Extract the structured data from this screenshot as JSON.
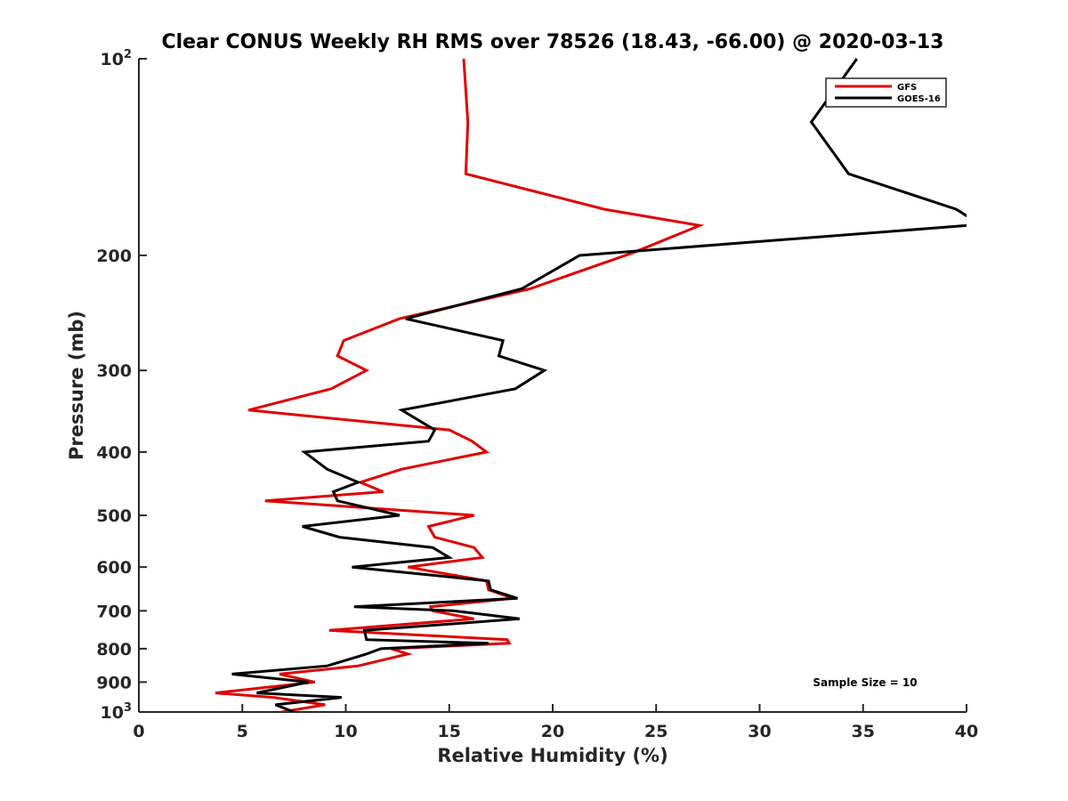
{
  "chart_data": {
    "type": "line",
    "title": "Clear CONUS Weekly RH RMS over 78526 (18.43, -66.00) @ 2020-03-13",
    "xlabel": "Relative Humidity (%)",
    "ylabel": "Pressure (mb)",
    "xlim": [
      0,
      40
    ],
    "ylim": [
      100,
      1000
    ],
    "y_scale": "log",
    "y_reversed": true,
    "grid": false,
    "legend_position": "top-right",
    "x_ticks": [
      "0",
      "5",
      "10",
      "15",
      "20",
      "25",
      "30",
      "35",
      "40"
    ],
    "y_ticks": [
      {
        "value": 100,
        "base": "10",
        "exp": "2"
      },
      {
        "value": 200,
        "label": "200"
      },
      {
        "value": 300,
        "label": "300"
      },
      {
        "value": 400,
        "label": "400"
      },
      {
        "value": 500,
        "label": "500"
      },
      {
        "value": 600,
        "label": "600"
      },
      {
        "value": 700,
        "label": "700"
      },
      {
        "value": 800,
        "label": "800"
      },
      {
        "value": 900,
        "label": "900"
      },
      {
        "value": 1000,
        "base": "10",
        "exp": "3"
      }
    ],
    "annotation": "Sample Size = 10",
    "series": [
      {
        "name": "GFS",
        "color": "#e00000",
        "points": [
          [
            15.7,
            100
          ],
          [
            15.9,
            125
          ],
          [
            15.8,
            150
          ],
          [
            22.5,
            170
          ],
          [
            27.1,
            180
          ],
          [
            23.9,
            198
          ],
          [
            18.9,
            225
          ],
          [
            12.6,
            250
          ],
          [
            9.9,
            270
          ],
          [
            9.6,
            285
          ],
          [
            11.0,
            300
          ],
          [
            9.3,
            320
          ],
          [
            5.3,
            345
          ],
          [
            15.0,
            370
          ],
          [
            16.1,
            385
          ],
          [
            16.8,
            400
          ],
          [
            12.7,
            425
          ],
          [
            10.7,
            445
          ],
          [
            11.8,
            460
          ],
          [
            6.1,
            475
          ],
          [
            16.2,
            500
          ],
          [
            14.0,
            520
          ],
          [
            14.3,
            540
          ],
          [
            16.2,
            560
          ],
          [
            16.6,
            580
          ],
          [
            13.0,
            600
          ],
          [
            16.8,
            630
          ],
          [
            16.9,
            650
          ],
          [
            18.1,
            670
          ],
          [
            14.1,
            690
          ],
          [
            14.2,
            700
          ],
          [
            16.2,
            720
          ],
          [
            9.2,
            750
          ],
          [
            17.8,
            775
          ],
          [
            17.9,
            785
          ],
          [
            12.2,
            800
          ],
          [
            13.0,
            815
          ],
          [
            10.6,
            850
          ],
          [
            6.8,
            875
          ],
          [
            8.5,
            900
          ],
          [
            3.7,
            935
          ],
          [
            6.5,
            950
          ],
          [
            9.0,
            975
          ],
          [
            6.9,
            1000
          ]
        ]
      },
      {
        "name": "GOES-16",
        "color": "#000000",
        "points": [
          [
            34.7,
            100
          ],
          [
            32.5,
            125
          ],
          [
            34.3,
            150
          ],
          [
            39.5,
            170
          ],
          [
            40.5,
            178
          ],
          [
            40.0,
            180
          ],
          [
            21.3,
            200
          ],
          [
            18.5,
            225
          ],
          [
            12.9,
            250
          ],
          [
            17.6,
            270
          ],
          [
            17.4,
            285
          ],
          [
            19.6,
            300
          ],
          [
            18.2,
            320
          ],
          [
            12.7,
            345
          ],
          [
            14.3,
            370
          ],
          [
            14.0,
            385
          ],
          [
            8.0,
            400
          ],
          [
            9.1,
            425
          ],
          [
            10.6,
            445
          ],
          [
            9.4,
            460
          ],
          [
            9.6,
            475
          ],
          [
            12.6,
            500
          ],
          [
            7.9,
            520
          ],
          [
            9.7,
            540
          ],
          [
            14.2,
            560
          ],
          [
            15.0,
            580
          ],
          [
            10.3,
            600
          ],
          [
            16.9,
            630
          ],
          [
            17.0,
            650
          ],
          [
            18.3,
            670
          ],
          [
            10.4,
            690
          ],
          [
            15.2,
            700
          ],
          [
            18.4,
            720
          ],
          [
            10.9,
            750
          ],
          [
            11.0,
            775
          ],
          [
            16.9,
            785
          ],
          [
            11.7,
            800
          ],
          [
            11.0,
            815
          ],
          [
            9.1,
            850
          ],
          [
            4.5,
            875
          ],
          [
            8.2,
            900
          ],
          [
            5.7,
            935
          ],
          [
            9.8,
            950
          ],
          [
            6.6,
            975
          ],
          [
            7.5,
            1000
          ]
        ]
      }
    ]
  }
}
